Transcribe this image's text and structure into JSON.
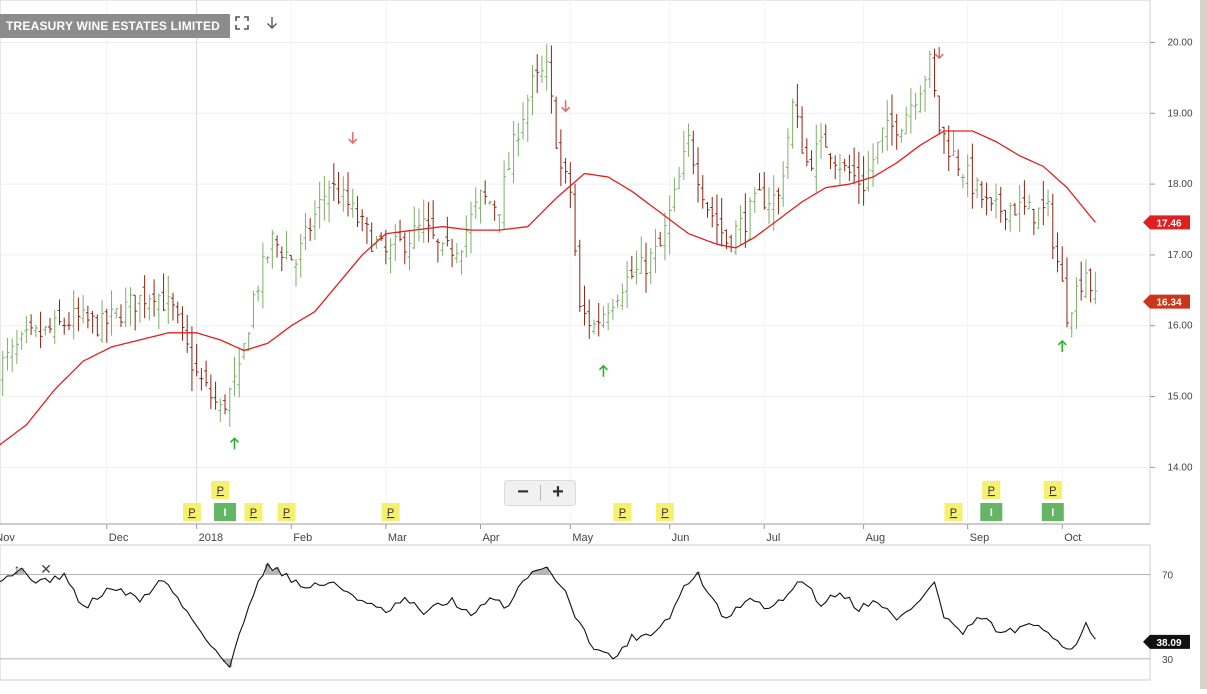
{
  "title": "TREASURY WINE ESTATES LIMITED",
  "toolbar": {
    "fullscreen_icon": "expand-icon",
    "download_icon": "arrow-down-icon"
  },
  "zoom": {
    "out_label": "−",
    "in_label": "+"
  },
  "indicator_toolbar": {
    "up_label": "↑",
    "close_label": "✕"
  },
  "colors": {
    "up_bar": "#7fae6a",
    "down_bar": "#8b2413",
    "ma_line": "#e02020",
    "price_badge": "#c9361a",
    "ma_badge": "#e02020",
    "arrow_up": "#2bb52b",
    "arrow_down": "#e07070",
    "p_marker": "#f5f06e",
    "i_marker": "#4aa84a"
  },
  "chart_data": [
    {
      "type": "ohlc",
      "series_name": "",
      "ylim": [
        13.2,
        20.6
      ],
      "y_ticks": [
        "14.00",
        "15.00",
        "16.00",
        "17.00",
        "18.00",
        "19.00",
        "20.00"
      ],
      "x_labels": [
        "Nov",
        "Dec",
        "2018",
        "Feb",
        "Mar",
        "Apr",
        "May",
        "Jun",
        "Jul",
        "Aug",
        "Sep",
        "Oct"
      ],
      "last_price": "16.34",
      "ma_value": "17.46",
      "close_anchors": [
        [
          0,
          15.4
        ],
        [
          6,
          15.8
        ],
        [
          10,
          15.9
        ],
        [
          16,
          16.1
        ],
        [
          22,
          16.0
        ],
        [
          28,
          16.3
        ],
        [
          33,
          16.5
        ],
        [
          37,
          16.2
        ],
        [
          42,
          15.3
        ],
        [
          47,
          14.8
        ],
        [
          51,
          15.3
        ],
        [
          54,
          16.4
        ],
        [
          58,
          17.2
        ],
        [
          63,
          16.9
        ],
        [
          66,
          17.4
        ],
        [
          70,
          18.0
        ],
        [
          74,
          17.7
        ],
        [
          78,
          17.3
        ],
        [
          82,
          17.0
        ],
        [
          86,
          17.2
        ],
        [
          90,
          17.4
        ],
        [
          94,
          17.0
        ],
        [
          98,
          17.2
        ],
        [
          102,
          17.8
        ],
        [
          106,
          17.7
        ],
        [
          110,
          18.8
        ],
        [
          113,
          19.4
        ],
        [
          116,
          19.6
        ],
        [
          119,
          18.2
        ],
        [
          121,
          17.9
        ],
        [
          123,
          16.2
        ],
        [
          126,
          16.0
        ],
        [
          129,
          16.3
        ],
        [
          132,
          16.6
        ],
        [
          136,
          16.8
        ],
        [
          140,
          17.1
        ],
        [
          143,
          17.8
        ],
        [
          146,
          18.6
        ],
        [
          150,
          17.7
        ],
        [
          154,
          17.2
        ],
        [
          158,
          17.5
        ],
        [
          161,
          17.8
        ],
        [
          165,
          17.8
        ],
        [
          168,
          19.1
        ],
        [
          171,
          18.3
        ],
        [
          175,
          18.6
        ],
        [
          179,
          18.2
        ],
        [
          183,
          18.0
        ],
        [
          187,
          18.7
        ],
        [
          191,
          18.9
        ],
        [
          195,
          19.4
        ],
        [
          197,
          19.7
        ],
        [
          199,
          18.8
        ],
        [
          202,
          18.4
        ],
        [
          206,
          18.0
        ],
        [
          210,
          17.6
        ],
        [
          214,
          17.7
        ],
        [
          218,
          17.6
        ],
        [
          222,
          17.6
        ],
        [
          224,
          16.9
        ],
        [
          226,
          16.2
        ],
        [
          228,
          16.5
        ],
        [
          230,
          16.8
        ],
        [
          232,
          16.34
        ]
      ],
      "ma_anchors": [
        [
          0,
          14.3
        ],
        [
          6,
          14.6
        ],
        [
          12,
          15.1
        ],
        [
          18,
          15.5
        ],
        [
          24,
          15.7
        ],
        [
          30,
          15.8
        ],
        [
          36,
          15.9
        ],
        [
          42,
          15.9
        ],
        [
          47,
          15.8
        ],
        [
          52,
          15.65
        ],
        [
          57,
          15.75
        ],
        [
          62,
          16.0
        ],
        [
          67,
          16.2
        ],
        [
          72,
          16.6
        ],
        [
          77,
          17.0
        ],
        [
          82,
          17.3
        ],
        [
          88,
          17.35
        ],
        [
          94,
          17.4
        ],
        [
          100,
          17.35
        ],
        [
          106,
          17.35
        ],
        [
          112,
          17.4
        ],
        [
          118,
          17.8
        ],
        [
          124,
          18.15
        ],
        [
          129,
          18.1
        ],
        [
          134,
          17.9
        ],
        [
          140,
          17.6
        ],
        [
          146,
          17.3
        ],
        [
          152,
          17.15
        ],
        [
          156,
          17.1
        ],
        [
          160,
          17.25
        ],
        [
          165,
          17.5
        ],
        [
          170,
          17.75
        ],
        [
          175,
          17.95
        ],
        [
          180,
          18.0
        ],
        [
          185,
          18.1
        ],
        [
          190,
          18.3
        ],
        [
          195,
          18.55
        ],
        [
          200,
          18.75
        ],
        [
          206,
          18.75
        ],
        [
          211,
          18.6
        ],
        [
          216,
          18.4
        ],
        [
          221,
          18.25
        ],
        [
          226,
          17.95
        ],
        [
          232,
          17.46
        ]
      ],
      "signals": [
        {
          "day": 50,
          "type": "buy"
        },
        {
          "day": 75,
          "type": "sell"
        },
        {
          "day": 120,
          "type": "sell"
        },
        {
          "day": 128,
          "type": "buy"
        },
        {
          "day": 199,
          "type": "sell"
        },
        {
          "day": 225,
          "type": "buy"
        }
      ],
      "markers": [
        {
          "day": 41,
          "label": "P",
          "kind": "p",
          "row": 1
        },
        {
          "day": 47,
          "label": "P",
          "kind": "p",
          "row": 0
        },
        {
          "day": 48,
          "label": "I",
          "kind": "i",
          "row": 1
        },
        {
          "day": 54,
          "label": "P",
          "kind": "p",
          "row": 1
        },
        {
          "day": 61,
          "label": "P",
          "kind": "p",
          "row": 1
        },
        {
          "day": 83,
          "label": "P",
          "kind": "p",
          "row": 1
        },
        {
          "day": 132,
          "label": "P",
          "kind": "p",
          "row": 1
        },
        {
          "day": 141,
          "label": "P",
          "kind": "p",
          "row": 1
        },
        {
          "day": 202,
          "label": "P",
          "kind": "p",
          "row": 1
        },
        {
          "day": 210,
          "label": "P",
          "kind": "p",
          "row": 0
        },
        {
          "day": 210,
          "label": "I",
          "kind": "i",
          "row": 1
        },
        {
          "day": 223,
          "label": "P",
          "kind": "p",
          "row": 0
        },
        {
          "day": 223,
          "label": "I",
          "kind": "i",
          "row": 1
        }
      ]
    },
    {
      "type": "line",
      "series_name": "",
      "ylim": [
        20,
        84
      ],
      "y_ticks": [
        "70",
        "30"
      ],
      "levels": [
        70,
        30
      ],
      "last_value": "38.09",
      "anchors": [
        [
          0,
          68
        ],
        [
          5,
          72
        ],
        [
          9,
          66
        ],
        [
          14,
          70
        ],
        [
          18,
          54
        ],
        [
          24,
          64
        ],
        [
          30,
          58
        ],
        [
          35,
          68
        ],
        [
          40,
          52
        ],
        [
          46,
          34
        ],
        [
          49,
          26
        ],
        [
          52,
          48
        ],
        [
          55,
          68
        ],
        [
          57,
          74
        ],
        [
          61,
          70
        ],
        [
          64,
          64
        ],
        [
          70,
          66
        ],
        [
          74,
          62
        ],
        [
          78,
          56
        ],
        [
          82,
          52
        ],
        [
          86,
          58
        ],
        [
          90,
          52
        ],
        [
          96,
          58
        ],
        [
          100,
          50
        ],
        [
          104,
          58
        ],
        [
          108,
          55
        ],
        [
          111,
          68
        ],
        [
          115,
          74
        ],
        [
          119,
          66
        ],
        [
          123,
          46
        ],
        [
          126,
          36
        ],
        [
          130,
          30
        ],
        [
          134,
          40
        ],
        [
          138,
          42
        ],
        [
          142,
          50
        ],
        [
          145,
          64
        ],
        [
          148,
          70
        ],
        [
          151,
          58
        ],
        [
          154,
          48
        ],
        [
          158,
          58
        ],
        [
          164,
          54
        ],
        [
          170,
          68
        ],
        [
          174,
          56
        ],
        [
          178,
          62
        ],
        [
          182,
          54
        ],
        [
          186,
          58
        ],
        [
          190,
          48
        ],
        [
          194,
          56
        ],
        [
          198,
          66
        ],
        [
          200,
          50
        ],
        [
          204,
          42
        ],
        [
          208,
          50
        ],
        [
          212,
          42
        ],
        [
          216,
          44
        ],
        [
          220,
          46
        ],
        [
          224,
          40
        ],
        [
          226,
          34
        ],
        [
          228,
          38
        ],
        [
          230,
          46
        ],
        [
          232,
          38.09
        ]
      ]
    }
  ]
}
